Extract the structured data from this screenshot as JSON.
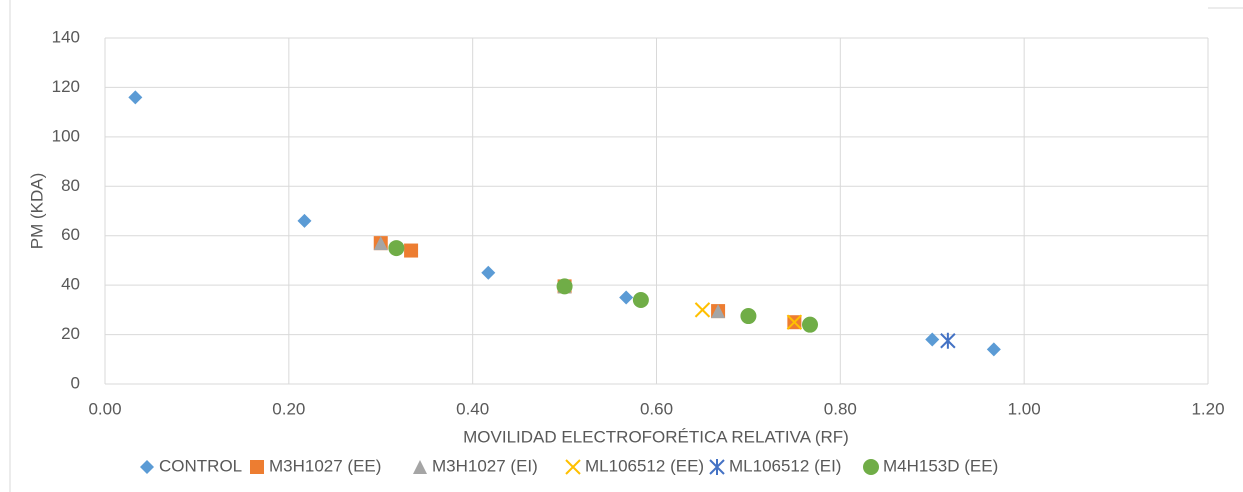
{
  "chart_data": {
    "type": "scatter",
    "xlabel": "MOVILIDAD ELECTROFORÉTICA RELATIVA (RF)",
    "ylabel": "PM (KDA)",
    "xlim": [
      0,
      1.2
    ],
    "xticks": [
      {
        "value": 0,
        "label": "0.00"
      },
      {
        "value": 0.2,
        "label": "0.20"
      },
      {
        "value": 0.4,
        "label": "0.40"
      },
      {
        "value": 0.6,
        "label": "0.60"
      },
      {
        "value": 0.8,
        "label": "0.80"
      },
      {
        "value": 1.0,
        "label": "1.00"
      },
      {
        "value": 1.2,
        "label": "1.20"
      }
    ],
    "ylim": [
      0,
      140
    ],
    "yticks": [
      0,
      20,
      40,
      60,
      80,
      100,
      120,
      140
    ],
    "grid": true,
    "legend": "bottom",
    "series": [
      {
        "name": "CONTROL",
        "color": "#5b9bd5",
        "marker": "diamond",
        "x": [
          0.033,
          0.217,
          0.417,
          0.567,
          0.9,
          0.967
        ],
        "values": [
          116,
          66,
          45,
          35,
          18,
          14
        ]
      },
      {
        "name": "M3H1027 (EE)",
        "color": "#ed7d31",
        "marker": "square",
        "x": [
          0.3,
          0.333,
          0.5,
          0.667,
          0.75
        ],
        "values": [
          57,
          54,
          39.5,
          29.5,
          25
        ]
      },
      {
        "name": "M3H1027 (EI)",
        "color": "#a5a5a5",
        "marker": "triangle",
        "x": [
          0.3,
          0.5,
          0.667
        ],
        "values": [
          57,
          39.5,
          29.5
        ]
      },
      {
        "name": "ML106512 (EE)",
        "color": "#ffc000",
        "marker": "x",
        "x": [
          0.65,
          0.75
        ],
        "values": [
          30,
          25
        ]
      },
      {
        "name": "ML106512 (EI)",
        "color": "#4472c4",
        "marker": "star",
        "x": [
          0.917
        ],
        "values": [
          17.5
        ]
      },
      {
        "name": "M4H153D (EE)",
        "color": "#70ad47",
        "marker": "circle",
        "x": [
          0.317,
          0.5,
          0.583,
          0.7,
          0.767
        ],
        "values": [
          55,
          39.5,
          34,
          27.5,
          24
        ]
      }
    ]
  }
}
